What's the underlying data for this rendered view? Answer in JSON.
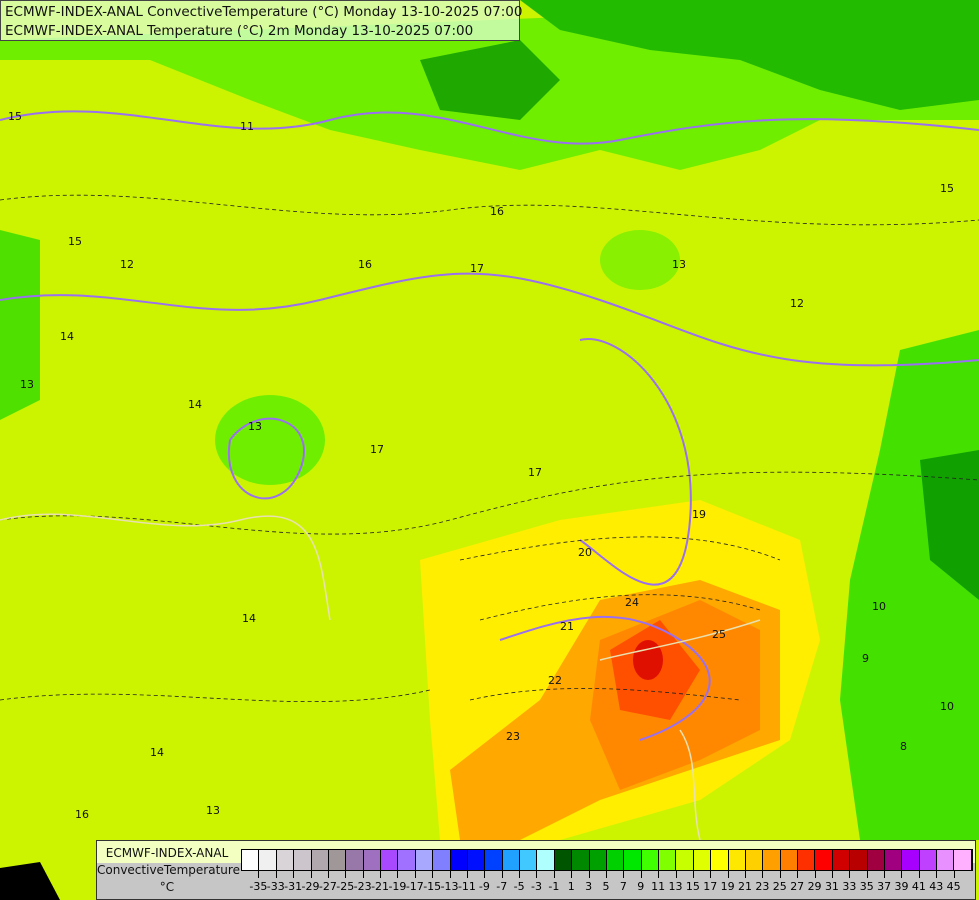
{
  "header": {
    "line1": "ECMWF-INDEX-ANAL ConvectiveTemperature (°C) Monday 13-10-2025 07:00",
    "line2": "ECMWF-INDEX-ANAL Temperature (°C) 2m Monday 13-10-2025 07:00"
  },
  "legend": {
    "name_line1": "ECMWF-INDEX-ANAL",
    "name_line2": "ConvectiveTemperature",
    "unit": "°C",
    "labels": [
      "-35",
      "-33",
      "-31",
      "-29",
      "-27",
      "-25",
      "-23",
      "-21",
      "-19",
      "-17",
      "-15",
      "-13",
      "-11",
      "-9",
      "-7",
      "-5",
      "-3",
      "-1",
      "1",
      "3",
      "5",
      "7",
      "9",
      "11",
      "13",
      "15",
      "17",
      "19",
      "21",
      "23",
      "25",
      "27",
      "29",
      "31",
      "33",
      "35",
      "37",
      "39",
      "41",
      "43",
      "45"
    ],
    "colors": [
      "#ffffff",
      "#f0f0f0",
      "#e4e2e4",
      "#d8d4d8",
      "#ccc6cc",
      "#c0b8bc",
      "#b0a8ac",
      "#a09898",
      "#8c8484",
      "#9878a8",
      "#a070c0",
      "#a860e0",
      "#a848ff",
      "#a070ff",
      "#9898ff",
      "#a8a8ff",
      "#8080ff",
      "#5858ff",
      "#0000ff",
      "#0010ff",
      "#0040ff",
      "#0070ff",
      "#20a0ff",
      "#40c8ff",
      "#80e8ff",
      "#b0ffff",
      "#005500",
      "#006e00",
      "#008800",
      "#00a000",
      "#00b800",
      "#00d000",
      "#00e800",
      "#00ff00",
      "#40ff00",
      "#80ff00",
      "#a8ff00",
      "#c8ff00",
      "#e0ff00",
      "#f0ff00",
      "#ffff00",
      "#ffe800",
      "#ffd000",
      "#ffb800",
      "#ffa000",
      "#ff8000",
      "#ff6000",
      "#ff3000",
      "#ff0000",
      "#e80000",
      "#d00000",
      "#b80000",
      "#a00000",
      "#a00040",
      "#a00080",
      "#a000b0",
      "#a800ff",
      "#c040ff",
      "#d870ff",
      "#e890ff",
      "#ffb0ff"
    ]
  },
  "contour_labels": [
    "15",
    "11",
    "16",
    "15",
    "14",
    "13",
    "14",
    "12",
    "13",
    "17",
    "17",
    "16",
    "13",
    "12",
    "17",
    "19",
    "20",
    "24",
    "21",
    "22",
    "23",
    "25",
    "14",
    "13",
    "16",
    "14",
    "10",
    "10",
    "9",
    "8",
    "15"
  ]
}
